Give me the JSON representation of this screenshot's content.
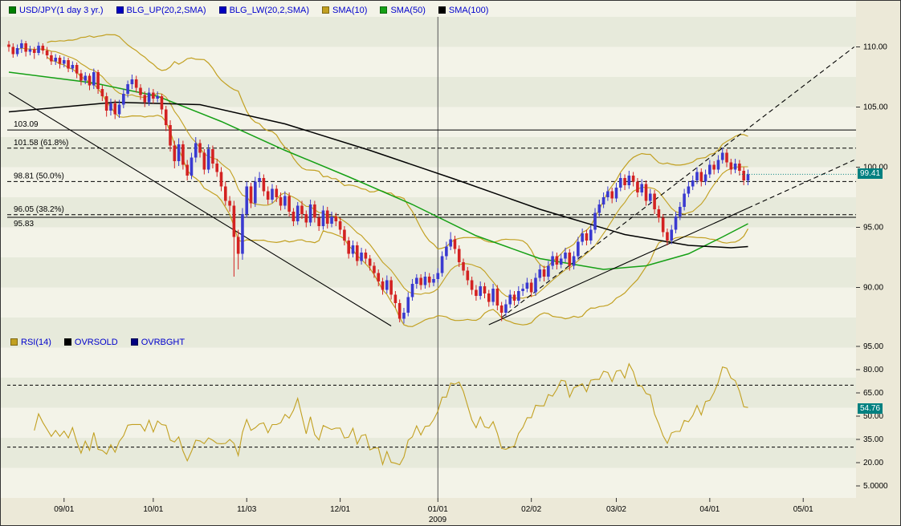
{
  "colors": {
    "up": "#3a3ad0",
    "down": "#d32222",
    "band": "#c2a021",
    "sma50": "#15a015",
    "sma100": "#000000",
    "flag": "#008080",
    "stripe_dark": "#e7eadb",
    "stripe_light": "#f3f3e8",
    "legend_text": "#0000cc",
    "year_divider": "#555555"
  },
  "legend_main": {
    "text_color": "#0000cc",
    "items": [
      {
        "label": "USD/JPY(1 day 3 yr.)",
        "color": "#008000"
      },
      {
        "label": "BLG_UP(20,2,SMA)",
        "color": "#0000c0"
      },
      {
        "label": "BLG_LW(20,2,SMA)",
        "color": "#0000c0"
      },
      {
        "label": "SMA(10)",
        "color": "#c2a021"
      },
      {
        "label": "SMA(50)",
        "color": "#15a015"
      },
      {
        "label": "SMA(100)",
        "color": "#000000"
      }
    ]
  },
  "legend_rsi": {
    "text_color": "#0000cc",
    "items": [
      {
        "label": "RSI(14)",
        "color": "#c2a021"
      },
      {
        "label": "OVRSOLD",
        "color": "#000000"
      },
      {
        "label": "OVRBGHT",
        "color": "#000080"
      }
    ]
  },
  "chart_data": {
    "type": "candlestick",
    "title": "USD/JPY(1 day 3 yr.)",
    "year_label": "2009",
    "x_ticks": [
      {
        "idx": 13,
        "label": "09/01"
      },
      {
        "idx": 34,
        "label": "10/01"
      },
      {
        "idx": 56,
        "label": "11/03"
      },
      {
        "idx": 78,
        "label": "12/01"
      },
      {
        "idx": 101,
        "label": "01/01"
      },
      {
        "idx": 123,
        "label": "02/02"
      },
      {
        "idx": 143,
        "label": "03/02"
      },
      {
        "idx": 165,
        "label": "04/01"
      },
      {
        "idx": 187,
        "label": "05/01"
      }
    ],
    "year_divider_idx": 101,
    "price_axis": [
      {
        "v": 110,
        "label": "110.00"
      },
      {
        "v": 105,
        "label": "105.00"
      },
      {
        "v": 100,
        "label": "100.00"
      },
      {
        "v": 95,
        "label": "95.00"
      },
      {
        "v": 90,
        "label": "90.00"
      }
    ],
    "hlines": [
      {
        "value": 103.09,
        "label": "103.09",
        "dashed": false
      },
      {
        "value": 101.58,
        "label": "101.58 (61.8%)",
        "dashed": true
      },
      {
        "value": 98.81,
        "label": "98.81 (50.0%)",
        "dashed": true
      },
      {
        "value": 96.05,
        "label": "96.05 (38.2%)",
        "dashed": true
      },
      {
        "value": 95.83,
        "label": "95.83",
        "dashed": false,
        "label_dy": 11
      }
    ],
    "trendlines": [
      {
        "name": "downtrend-line",
        "points": [
          [
            0,
            106.2
          ],
          [
            90,
            86.8
          ]
        ],
        "dashed": false
      },
      {
        "name": "uptrend-line",
        "points": [
          [
            113,
            86.9
          ],
          [
            174,
            96.6
          ]
        ],
        "dashed": false
      },
      {
        "name": "uptrend-projection",
        "points": [
          [
            174,
            96.6
          ],
          [
            199,
            100.6
          ]
        ],
        "dashed": true
      },
      {
        "name": "steep-projection",
        "points": [
          [
            116,
            87.5
          ],
          [
            199,
            110.0
          ]
        ],
        "dashed": true
      }
    ],
    "overlays": {
      "sma10": {
        "period": 10,
        "color": "#c2a021"
      },
      "bollinger": {
        "period": 20,
        "dev": 2,
        "color": "#c2a021"
      },
      "sma50": {
        "color": "#15a015",
        "points": [
          [
            0,
            107.9
          ],
          [
            20,
            107.0
          ],
          [
            35,
            105.9
          ],
          [
            50,
            103.8
          ],
          [
            65,
            101.4
          ],
          [
            80,
            99.2
          ],
          [
            95,
            96.9
          ],
          [
            110,
            94.3
          ],
          [
            125,
            92.4
          ],
          [
            140,
            91.5
          ],
          [
            150,
            91.8
          ],
          [
            160,
            92.8
          ],
          [
            168,
            94.2
          ],
          [
            174,
            95.3
          ]
        ]
      },
      "sma100": {
        "color": "#000000",
        "points": [
          [
            0,
            104.6
          ],
          [
            25,
            105.4
          ],
          [
            45,
            105.2
          ],
          [
            65,
            103.6
          ],
          [
            85,
            101.4
          ],
          [
            105,
            99.0
          ],
          [
            125,
            96.5
          ],
          [
            145,
            94.4
          ],
          [
            160,
            93.5
          ],
          [
            170,
            93.3
          ],
          [
            174,
            93.4
          ]
        ]
      }
    },
    "last_price": {
      "value": "99.41",
      "color": "#008080"
    },
    "rsi": {
      "period": 14,
      "levels": [
        70,
        30
      ],
      "last_value": "54.76",
      "color": "#c2a021",
      "axis": [
        {
          "v": 95,
          "label": "95.00"
        },
        {
          "v": 80,
          "label": "80.00"
        },
        {
          "v": 65,
          "label": "65.00"
        },
        {
          "v": 50,
          "label": "50.00"
        },
        {
          "v": 35,
          "label": "35.00"
        },
        {
          "v": 20,
          "label": "20.00"
        },
        {
          "v": 5,
          "label": "5.0000"
        }
      ]
    },
    "candles": [
      [
        110.2,
        110.5,
        109.6,
        110.0
      ],
      [
        110.0,
        110.3,
        109.1,
        109.4
      ],
      [
        109.4,
        110.2,
        109.2,
        109.9
      ],
      [
        109.9,
        110.6,
        109.5,
        110.3
      ],
      [
        110.3,
        110.5,
        109.2,
        109.6
      ],
      [
        109.6,
        110.1,
        109.3,
        109.8
      ],
      [
        109.8,
        110.0,
        109.0,
        109.5
      ],
      [
        109.5,
        110.4,
        109.3,
        110.1
      ],
      [
        110.1,
        110.3,
        109.4,
        109.7
      ],
      [
        109.7,
        110.0,
        109.0,
        109.3
      ],
      [
        109.3,
        109.6,
        108.5,
        108.8
      ],
      [
        108.8,
        109.4,
        108.5,
        109.1
      ],
      [
        109.1,
        109.3,
        108.2,
        108.6
      ],
      [
        108.6,
        109.2,
        108.3,
        108.9
      ],
      [
        108.9,
        109.1,
        107.9,
        108.2
      ],
      [
        108.2,
        108.8,
        107.9,
        108.5
      ],
      [
        108.5,
        108.7,
        107.4,
        107.8
      ],
      [
        107.8,
        108.1,
        106.8,
        107.2
      ],
      [
        107.2,
        107.9,
        106.9,
        107.6
      ],
      [
        107.6,
        107.8,
        106.4,
        106.8
      ],
      [
        106.8,
        108.2,
        106.5,
        107.9
      ],
      [
        107.9,
        108.1,
        106.1,
        106.5
      ],
      [
        106.5,
        106.8,
        105.5,
        105.9
      ],
      [
        105.9,
        106.2,
        104.2,
        104.7
      ],
      [
        104.7,
        105.7,
        104.3,
        105.3
      ],
      [
        105.3,
        105.6,
        104.0,
        104.4
      ],
      [
        104.4,
        105.6,
        104.1,
        105.2
      ],
      [
        105.2,
        106.5,
        104.9,
        106.1
      ],
      [
        106.1,
        107.2,
        105.8,
        106.9
      ],
      [
        106.9,
        107.7,
        106.5,
        107.3
      ],
      [
        107.3,
        107.6,
        106.2,
        106.6
      ],
      [
        106.6,
        106.9,
        105.6,
        106.0
      ],
      [
        106.0,
        106.3,
        105.0,
        105.4
      ],
      [
        105.4,
        106.6,
        105.1,
        106.2
      ],
      [
        106.2,
        106.5,
        105.3,
        105.7
      ],
      [
        105.7,
        106.3,
        105.4,
        105.9
      ],
      [
        105.9,
        106.1,
        104.4,
        104.8
      ],
      [
        104.8,
        105.1,
        103.0,
        103.5
      ],
      [
        103.5,
        103.9,
        101.3,
        101.8
      ],
      [
        101.8,
        102.2,
        99.9,
        100.5
      ],
      [
        100.5,
        102.4,
        100.1,
        101.9
      ],
      [
        101.9,
        102.2,
        99.8,
        100.2
      ],
      [
        100.2,
        100.6,
        98.9,
        99.3
      ],
      [
        99.3,
        101.2,
        99.0,
        100.8
      ],
      [
        100.8,
        102.5,
        100.4,
        102.0
      ],
      [
        102.0,
        102.3,
        100.8,
        101.2
      ],
      [
        101.2,
        101.5,
        99.4,
        99.8
      ],
      [
        99.8,
        101.9,
        99.5,
        101.5
      ],
      [
        101.5,
        101.8,
        99.9,
        100.3
      ],
      [
        100.3,
        100.7,
        99.2,
        99.6
      ],
      [
        99.6,
        100.0,
        98.0,
        98.4
      ],
      [
        98.4,
        98.8,
        96.8,
        97.2
      ],
      [
        97.2,
        97.6,
        96.3,
        96.8
      ],
      [
        96.8,
        97.2,
        90.9,
        94.2
      ],
      [
        94.2,
        94.8,
        91.5,
        92.8
      ],
      [
        92.8,
        96.6,
        92.3,
        96.1
      ],
      [
        96.1,
        98.8,
        95.8,
        98.4
      ],
      [
        98.4,
        98.7,
        96.6,
        97.0
      ],
      [
        97.0,
        99.2,
        96.7,
        98.8
      ],
      [
        98.8,
        99.6,
        98.3,
        99.1
      ],
      [
        99.1,
        99.4,
        97.6,
        98.0
      ],
      [
        98.0,
        98.4,
        96.9,
        97.3
      ],
      [
        97.3,
        98.6,
        97.0,
        98.2
      ],
      [
        98.2,
        98.5,
        97.1,
        97.5
      ],
      [
        97.5,
        97.9,
        96.4,
        96.8
      ],
      [
        96.8,
        98.0,
        96.5,
        97.6
      ],
      [
        97.6,
        97.9,
        95.9,
        96.3
      ],
      [
        96.3,
        96.6,
        95.1,
        95.5
      ],
      [
        95.5,
        97.1,
        95.2,
        96.8
      ],
      [
        96.8,
        97.2,
        95.7,
        96.1
      ],
      [
        96.1,
        96.4,
        95.0,
        95.4
      ],
      [
        95.4,
        97.3,
        95.1,
        96.9
      ],
      [
        96.9,
        97.2,
        95.4,
        95.8
      ],
      [
        95.8,
        96.1,
        94.7,
        95.1
      ],
      [
        95.1,
        96.8,
        94.8,
        96.4
      ],
      [
        96.4,
        96.7,
        94.9,
        95.3
      ],
      [
        95.3,
        96.3,
        95.0,
        95.9
      ],
      [
        95.9,
        96.2,
        95.1,
        95.5
      ],
      [
        95.5,
        95.8,
        94.4,
        94.8
      ],
      [
        94.8,
        95.1,
        93.5,
        93.9
      ],
      [
        93.9,
        94.2,
        92.4,
        92.8
      ],
      [
        92.8,
        93.9,
        92.5,
        93.5
      ],
      [
        93.5,
        93.8,
        91.8,
        92.2
      ],
      [
        92.2,
        93.3,
        91.9,
        92.9
      ],
      [
        92.9,
        93.2,
        92.0,
        92.4
      ],
      [
        92.4,
        92.7,
        91.4,
        91.8
      ],
      [
        91.8,
        92.1,
        90.8,
        91.2
      ],
      [
        91.2,
        91.5,
        90.1,
        90.5
      ],
      [
        90.5,
        90.8,
        89.4,
        89.8
      ],
      [
        89.8,
        91.0,
        89.5,
        90.6
      ],
      [
        90.6,
        90.9,
        89.0,
        89.4
      ],
      [
        89.4,
        89.7,
        88.3,
        88.7
      ],
      [
        88.7,
        89.0,
        87.1,
        87.4
      ],
      [
        87.4,
        88.3,
        87.0,
        87.9
      ],
      [
        87.9,
        89.6,
        87.6,
        89.2
      ],
      [
        89.2,
        90.7,
        88.9,
        90.3
      ],
      [
        90.3,
        91.1,
        89.9,
        90.8
      ],
      [
        90.8,
        91.1,
        89.8,
        90.2
      ],
      [
        90.2,
        91.3,
        89.9,
        90.9
      ],
      [
        90.9,
        91.2,
        90.0,
        90.4
      ],
      [
        90.4,
        91.1,
        90.1,
        90.7
      ],
      [
        90.7,
        91.6,
        90.4,
        91.2
      ],
      [
        91.2,
        93.0,
        90.9,
        92.6
      ],
      [
        92.6,
        93.8,
        92.3,
        93.4
      ],
      [
        93.4,
        94.6,
        93.1,
        94.0
      ],
      [
        94.0,
        94.3,
        92.8,
        93.2
      ],
      [
        93.2,
        93.5,
        91.7,
        92.1
      ],
      [
        92.1,
        92.4,
        91.0,
        91.4
      ],
      [
        91.4,
        91.7,
        90.2,
        90.6
      ],
      [
        90.6,
        90.9,
        89.4,
        89.8
      ],
      [
        89.8,
        90.2,
        88.9,
        89.3
      ],
      [
        89.3,
        90.5,
        89.0,
        90.1
      ],
      [
        90.1,
        90.4,
        89.1,
        89.5
      ],
      [
        89.5,
        89.8,
        88.4,
        88.8
      ],
      [
        88.8,
        90.3,
        88.5,
        89.9
      ],
      [
        89.9,
        90.2,
        88.1,
        88.5
      ],
      [
        88.5,
        88.8,
        87.2,
        87.9
      ],
      [
        87.9,
        89.0,
        87.6,
        88.6
      ],
      [
        88.6,
        89.8,
        88.3,
        89.4
      ],
      [
        89.4,
        89.7,
        88.5,
        88.9
      ],
      [
        88.9,
        90.1,
        88.6,
        89.7
      ],
      [
        89.7,
        90.3,
        89.3,
        89.9
      ],
      [
        89.9,
        90.8,
        89.6,
        90.4
      ],
      [
        90.4,
        90.7,
        89.2,
        89.6
      ],
      [
        89.6,
        91.2,
        89.3,
        90.8
      ],
      [
        90.8,
        91.9,
        90.5,
        91.5
      ],
      [
        91.5,
        91.8,
        90.5,
        90.9
      ],
      [
        90.9,
        92.2,
        90.6,
        91.8
      ],
      [
        91.8,
        93.0,
        91.5,
        92.6
      ],
      [
        92.6,
        92.9,
        91.5,
        91.9
      ],
      [
        91.9,
        92.8,
        91.6,
        92.4
      ],
      [
        92.4,
        93.3,
        92.1,
        92.9
      ],
      [
        92.9,
        93.2,
        91.4,
        91.8
      ],
      [
        91.8,
        93.0,
        91.5,
        92.6
      ],
      [
        92.6,
        94.2,
        92.3,
        93.8
      ],
      [
        93.8,
        94.9,
        93.5,
        94.5
      ],
      [
        94.5,
        94.8,
        93.5,
        93.9
      ],
      [
        93.9,
        95.2,
        93.6,
        94.8
      ],
      [
        94.8,
        96.6,
        94.5,
        96.2
      ],
      [
        96.2,
        97.3,
        95.9,
        96.9
      ],
      [
        96.9,
        97.9,
        96.6,
        97.5
      ],
      [
        97.5,
        98.4,
        97.2,
        98.0
      ],
      [
        98.0,
        98.3,
        97.0,
        97.4
      ],
      [
        97.4,
        98.7,
        97.1,
        98.3
      ],
      [
        98.3,
        99.5,
        98.0,
        99.1
      ],
      [
        99.1,
        99.4,
        98.1,
        98.5
      ],
      [
        98.5,
        99.7,
        98.2,
        99.3
      ],
      [
        99.3,
        99.6,
        98.4,
        98.8
      ],
      [
        98.8,
        99.1,
        97.5,
        97.9
      ],
      [
        97.9,
        99.0,
        97.6,
        98.6
      ],
      [
        98.6,
        98.9,
        96.8,
        97.2
      ],
      [
        97.2,
        98.2,
        96.9,
        97.8
      ],
      [
        97.8,
        98.1,
        96.1,
        96.5
      ],
      [
        96.5,
        96.8,
        95.4,
        95.8
      ],
      [
        95.8,
        96.1,
        94.2,
        94.6
      ],
      [
        94.6,
        94.9,
        93.5,
        93.9
      ],
      [
        93.9,
        95.2,
        93.6,
        94.8
      ],
      [
        94.8,
        96.3,
        94.5,
        95.9
      ],
      [
        95.9,
        97.1,
        95.6,
        96.7
      ],
      [
        96.7,
        98.2,
        96.4,
        97.8
      ],
      [
        97.8,
        98.8,
        97.5,
        98.4
      ],
      [
        98.4,
        99.3,
        98.1,
        98.9
      ],
      [
        98.9,
        100.0,
        98.6,
        99.6
      ],
      [
        99.6,
        99.9,
        98.4,
        98.8
      ],
      [
        98.8,
        99.8,
        98.5,
        99.4
      ],
      [
        99.4,
        100.6,
        99.1,
        100.2
      ],
      [
        100.2,
        100.5,
        99.4,
        99.8
      ],
      [
        99.8,
        101.0,
        99.5,
        100.6
      ],
      [
        100.6,
        101.6,
        100.3,
        101.2
      ],
      [
        101.2,
        101.5,
        100.0,
        100.4
      ],
      [
        100.4,
        100.7,
        99.4,
        99.8
      ],
      [
        99.8,
        100.7,
        99.5,
        100.3
      ],
      [
        100.3,
        100.6,
        99.3,
        99.7
      ],
      [
        99.7,
        100.0,
        98.5,
        98.9
      ],
      [
        98.9,
        99.8,
        98.5,
        99.41
      ]
    ]
  }
}
